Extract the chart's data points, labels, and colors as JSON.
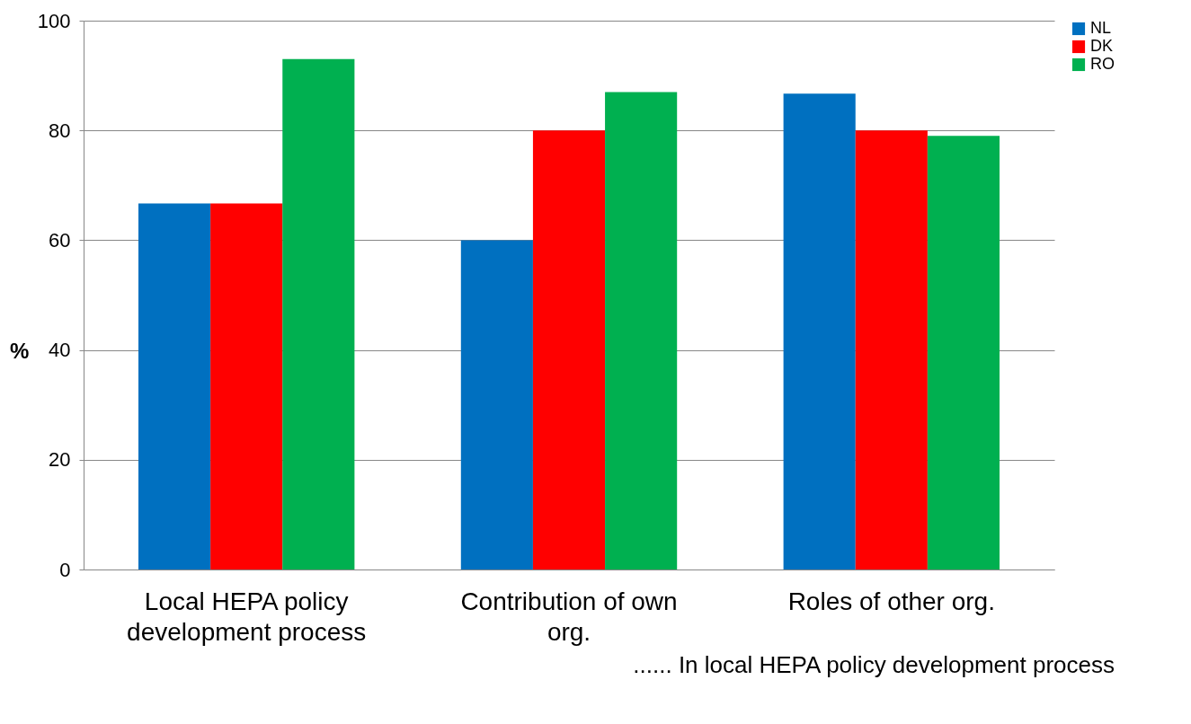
{
  "chart_data": {
    "type": "bar",
    "ylabel": "%",
    "categories": [
      "Local HEPA policy development process",
      "Contribution of own org.",
      "Roles of other org."
    ],
    "series": [
      {
        "name": "NL",
        "color": "#0070c0",
        "values": [
          66.7,
          60,
          86.7
        ]
      },
      {
        "name": "DK",
        "color": "#ff0000",
        "values": [
          66.7,
          80,
          80
        ]
      },
      {
        "name": "RO",
        "color": "#00b050",
        "values": [
          93,
          87,
          79
        ]
      }
    ],
    "ylim": [
      0,
      100
    ],
    "yticks": [
      0,
      20,
      40,
      60,
      80,
      100
    ],
    "grid": "y",
    "legend": "right",
    "annotations": [
      "...... In local HEPA policy development process"
    ]
  }
}
